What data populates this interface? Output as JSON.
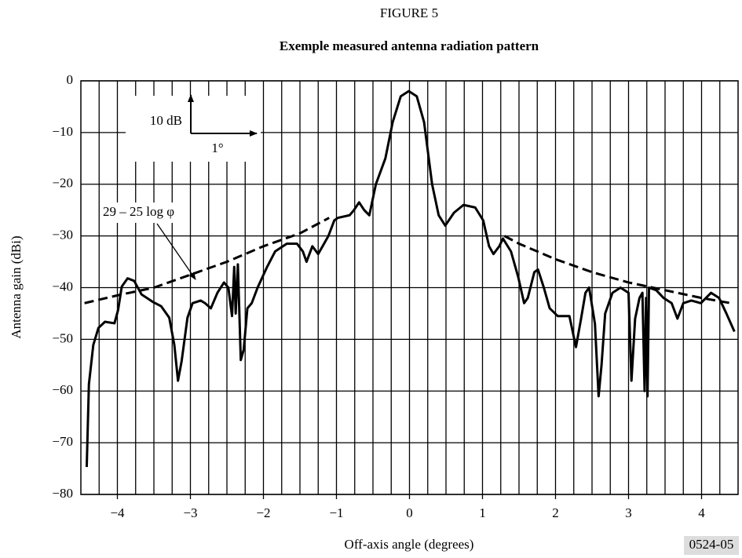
{
  "chart_data": {
    "type": "line",
    "title": "FIGURE 5",
    "subtitle": "Exemple measured antenna radiation pattern",
    "x_label": "Off-axis angle (degrees)",
    "y_label": "Antenna gain (dBi)",
    "code": "0524-05",
    "annotations": {
      "scale_y": "10 dB",
      "scale_x": "1°",
      "envelope": "29 – 25 log φ"
    },
    "xlim": [
      -4.5,
      4.5
    ],
    "ylim": [
      -80,
      0
    ],
    "xticks": [
      {
        "value": -4,
        "label": "−4"
      },
      {
        "value": -3,
        "label": "−3"
      },
      {
        "value": -2,
        "label": "−2"
      },
      {
        "value": -1,
        "label": "−1"
      },
      0,
      1,
      2,
      3,
      4
    ],
    "yticks": [
      0,
      {
        "value": -10,
        "label": "−10"
      },
      {
        "value": -20,
        "label": "−20"
      },
      {
        "value": -30,
        "label": "−30"
      },
      {
        "value": -40,
        "label": "−40"
      },
      {
        "value": -50,
        "label": "−50"
      },
      {
        "value": -60,
        "label": "−60"
      },
      {
        "value": -70,
        "label": "−70"
      },
      {
        "value": -80,
        "label": "−80"
      }
    ],
    "xgrid": [
      -4.25,
      -4,
      -3.75,
      -3.5,
      -3.25,
      -3,
      -2.75,
      -2.5,
      -2.25,
      -2,
      -1.75,
      -1.5,
      -1.25,
      -1,
      -0.75,
      -0.5,
      -0.25,
      0,
      0.25,
      0.5,
      0.75,
      1,
      1.25,
      1.5,
      1.75,
      2,
      2.25,
      2.5,
      2.75,
      3,
      3.25,
      3.5,
      3.75,
      4,
      4.25
    ],
    "grid": true,
    "series": [
      {
        "name": "measured",
        "color": "#000",
        "dash": false,
        "x": [
          -4.42,
          -4.39,
          -4.33,
          -4.26,
          -4.17,
          -4.04,
          -3.99,
          -3.94,
          -3.86,
          -3.77,
          -3.67,
          -3.51,
          -3.4,
          -3.29,
          -3.22,
          -3.17,
          -3.12,
          -3.04,
          -2.97,
          -2.86,
          -2.8,
          -2.72,
          -2.63,
          -2.54,
          -2.48,
          -2.43,
          -2.4,
          -2.38,
          -2.35,
          -2.31,
          -2.27,
          -2.22,
          -2.16,
          -2.08,
          -1.95,
          -1.84,
          -1.68,
          -1.54,
          -1.46,
          -1.41,
          -1.33,
          -1.25,
          -1.17,
          -1.11,
          -1.03,
          -0.98,
          -0.82,
          -0.76,
          -0.69,
          -0.62,
          -0.55,
          -0.46,
          -0.33,
          -0.23,
          -0.12,
          -0.01,
          0.1,
          0.2,
          0.31,
          0.4,
          0.49,
          0.61,
          0.74,
          0.9,
          1.01,
          1.09,
          1.15,
          1.23,
          1.28,
          1.39,
          1.49,
          1.57,
          1.62,
          1.71,
          1.76,
          1.84,
          1.92,
          2.03,
          2.19,
          2.28,
          2.35,
          2.41,
          2.46,
          2.54,
          2.59,
          2.63,
          2.68,
          2.78,
          2.89,
          3.0,
          3.04,
          3.09,
          3.15,
          3.19,
          3.22,
          3.24,
          3.26,
          3.28,
          3.38,
          3.48,
          3.59,
          3.67,
          3.75,
          3.86,
          3.99,
          4.13,
          4.24,
          4.34,
          4.45
        ],
        "values": [
          -74.7,
          -58.7,
          -51.1,
          -47.8,
          -46.6,
          -46.9,
          -44.3,
          -39.8,
          -38.2,
          -38.7,
          -41.3,
          -42.8,
          -43.6,
          -45.8,
          -51.1,
          -58.0,
          -54.2,
          -45.8,
          -43,
          -42.5,
          -43,
          -44,
          -41,
          -39,
          -40,
          -45.5,
          -36,
          -45,
          -35.5,
          -54,
          -52,
          -44,
          -43,
          -40,
          -36,
          -33,
          -31.5,
          -31.5,
          -33,
          -35,
          -32,
          -33.5,
          -31.5,
          -30,
          -27,
          -26.5,
          -26,
          -25,
          -23.5,
          -25,
          -26,
          -20,
          -15,
          -8,
          -3,
          -2,
          -3,
          -8,
          -20,
          -26,
          -28,
          -25.5,
          -24,
          -24.5,
          -27,
          -32,
          -33.5,
          -32,
          -30.5,
          -33,
          -38,
          -43,
          -42,
          -37,
          -36.5,
          -40,
          -44,
          -45.5,
          -45.5,
          -51.5,
          -46,
          -41,
          -40,
          -47,
          -61,
          -55,
          -45,
          -41,
          -40,
          -41,
          -58,
          -46,
          -42,
          -41,
          -60,
          -42,
          -61,
          -40,
          -40.5,
          -42,
          -43,
          -46,
          -43,
          -42.5,
          -43,
          -41,
          -42,
          -45,
          -48.5
        ]
      },
      {
        "name": "envelope left",
        "color": "#000",
        "dash": true,
        "x": [
          -4.45,
          -4,
          -3.5,
          -3,
          -2.5,
          -2,
          -1.5,
          -1.1
        ],
        "values": [
          -43,
          -41.5,
          -40,
          -37.5,
          -35,
          -32,
          -29.5,
          -26.5
        ]
      },
      {
        "name": "envelope right",
        "color": "#000",
        "dash": true,
        "x": [
          1.3,
          1.5,
          2,
          2.5,
          3,
          3.5,
          4,
          4.4
        ],
        "values": [
          -30,
          -31.5,
          -34.5,
          -37,
          -39,
          -40.5,
          -42,
          -43
        ]
      }
    ]
  }
}
